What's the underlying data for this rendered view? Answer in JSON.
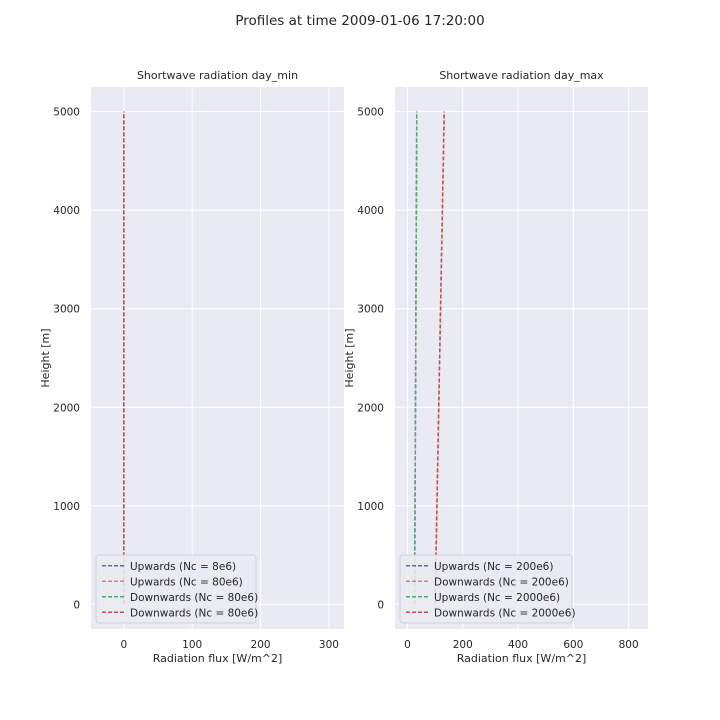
{
  "figure": {
    "title": "Profiles at time 2009-01-06 17:20:00"
  },
  "colors": {
    "background": "#eaeaf2",
    "grid": "#ffffff",
    "blue": "#4c72b0",
    "orange": "#dd8452",
    "green": "#55a868",
    "red": "#c44e52"
  },
  "chart_data": [
    {
      "type": "line",
      "title": "Shortwave radiation day_min",
      "xlabel": "Radiation flux [W/m^2]",
      "ylabel": "Height [m]",
      "xlim": [
        -48,
        322
      ],
      "ylim": [
        -250,
        5250
      ],
      "xticks": [
        0,
        100,
        200,
        300
      ],
      "yticks": [
        0,
        1000,
        2000,
        3000,
        4000,
        5000
      ],
      "grid": true,
      "legend_position": "lower-left",
      "series": [
        {
          "name": "Upwards (Nc = 8e6)",
          "color": "#4c72b0",
          "style": "dashed",
          "x": [
            0,
            0
          ],
          "y": [
            0,
            5000
          ]
        },
        {
          "name": "Upwards (Nc = 80e6)",
          "color": "#dd8452",
          "style": "dashed",
          "x": [
            0,
            0
          ],
          "y": [
            0,
            5000
          ]
        },
        {
          "name": "Downwards (Nc = 80e6)",
          "color": "#55a868",
          "style": "dashed",
          "x": [
            0,
            0
          ],
          "y": [
            0,
            5000
          ]
        },
        {
          "name": "Downwards (Nc = 80e6)",
          "color": "#c44e52",
          "style": "dashed",
          "x": [
            0,
            0
          ],
          "y": [
            0,
            5000
          ]
        }
      ]
    },
    {
      "type": "line",
      "title": "Shortwave radiation day_max",
      "xlabel": "Radiation flux [W/m^2]",
      "ylabel": "Height [m]",
      "xlim": [
        -45,
        870
      ],
      "ylim": [
        -250,
        5250
      ],
      "xticks": [
        0,
        200,
        400,
        600,
        800
      ],
      "yticks": [
        0,
        1000,
        2000,
        3000,
        4000,
        5000
      ],
      "grid": true,
      "legend_position": "lower-left",
      "series": [
        {
          "name": "Upwards (Nc = 200e6)",
          "color": "#4c72b0",
          "style": "dashed",
          "x": [
            26,
            34
          ],
          "y": [
            0,
            5000
          ]
        },
        {
          "name": "Downwards (Nc = 200e6)",
          "color": "#dd8452",
          "style": "dashed",
          "x": [
            100,
            133
          ],
          "y": [
            0,
            5000
          ]
        },
        {
          "name": "Upwards (Nc = 2000e6)",
          "color": "#55a868",
          "style": "dashed",
          "x": [
            26,
            34
          ],
          "y": [
            0,
            5000
          ]
        },
        {
          "name": "Downwards (Nc = 2000e6)",
          "color": "#c44e52",
          "style": "dashed",
          "x": [
            100,
            133
          ],
          "y": [
            0,
            5000
          ]
        }
      ]
    }
  ]
}
